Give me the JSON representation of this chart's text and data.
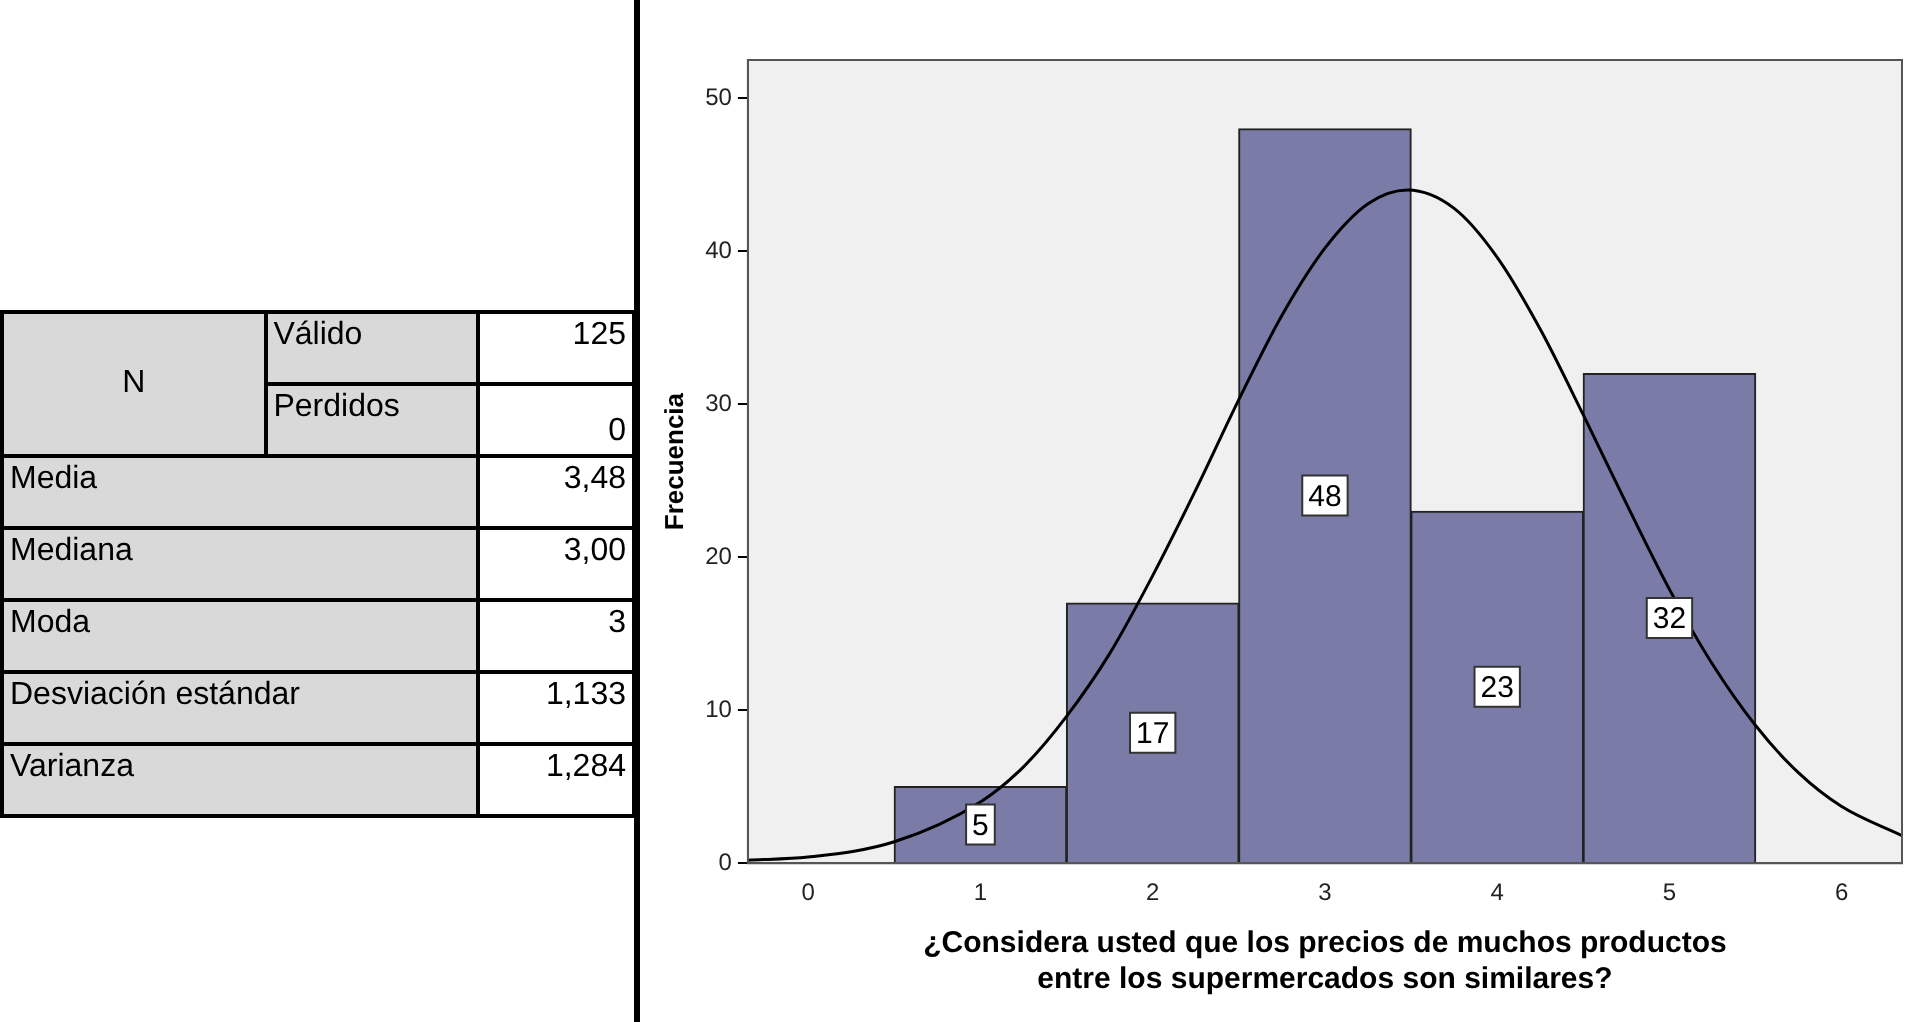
{
  "chart_data": [
    {
      "type": "other",
      "annotations": [
        "N",
        "Válido",
        "125",
        "Perdidos",
        "0",
        "Media",
        "3,48",
        "Mediana",
        "3,00",
        "Moda",
        "3",
        "Desviación estándar",
        "1,133",
        "Varianza",
        "1,284"
      ]
    },
    {
      "type": "histogram",
      "bins": [
        0.5,
        1.5,
        2.5,
        3.5,
        4.5,
        5.5
      ],
      "values": [
        5,
        17,
        48,
        23,
        32
      ],
      "color": "#7b7ba8",
      "value_labels": [
        "5",
        "17",
        "48",
        "23",
        "32"
      ],
      "xlabel": "¿Considera usted que los precios de muchos productos\nentre los supermercados son similares?",
      "ylabel": "Frecuencia",
      "xlim": [
        -0.35,
        6.35
      ],
      "xticks": [
        0,
        1,
        2,
        3,
        4,
        5,
        6
      ],
      "ylim": [
        0,
        52.5
      ],
      "yticks": [
        0,
        10,
        20,
        30,
        40,
        50
      ],
      "grid": false,
      "legend": false,
      "series": [
        {
          "type": "line",
          "color": "#000000",
          "x": [
            -0.35,
            0,
            0.5,
            1,
            1.25,
            1.5,
            1.75,
            2,
            2.25,
            2.5,
            2.75,
            3,
            3.25,
            3.48,
            3.75,
            4,
            4.25,
            4.5,
            4.75,
            5,
            5.25,
            5.5,
            5.75,
            6,
            6.35
          ],
          "values": [
            0.2,
            0.4,
            1.4,
            4.0,
            6.3,
            9.6,
            13.7,
            18.8,
            24.4,
            30.3,
            35.8,
            40.2,
            43.1,
            44.0,
            42.8,
            39.6,
            34.9,
            29.3,
            23.5,
            17.9,
            13.0,
            9.0,
            5.9,
            3.7,
            1.8
          ]
        }
      ]
    }
  ]
}
